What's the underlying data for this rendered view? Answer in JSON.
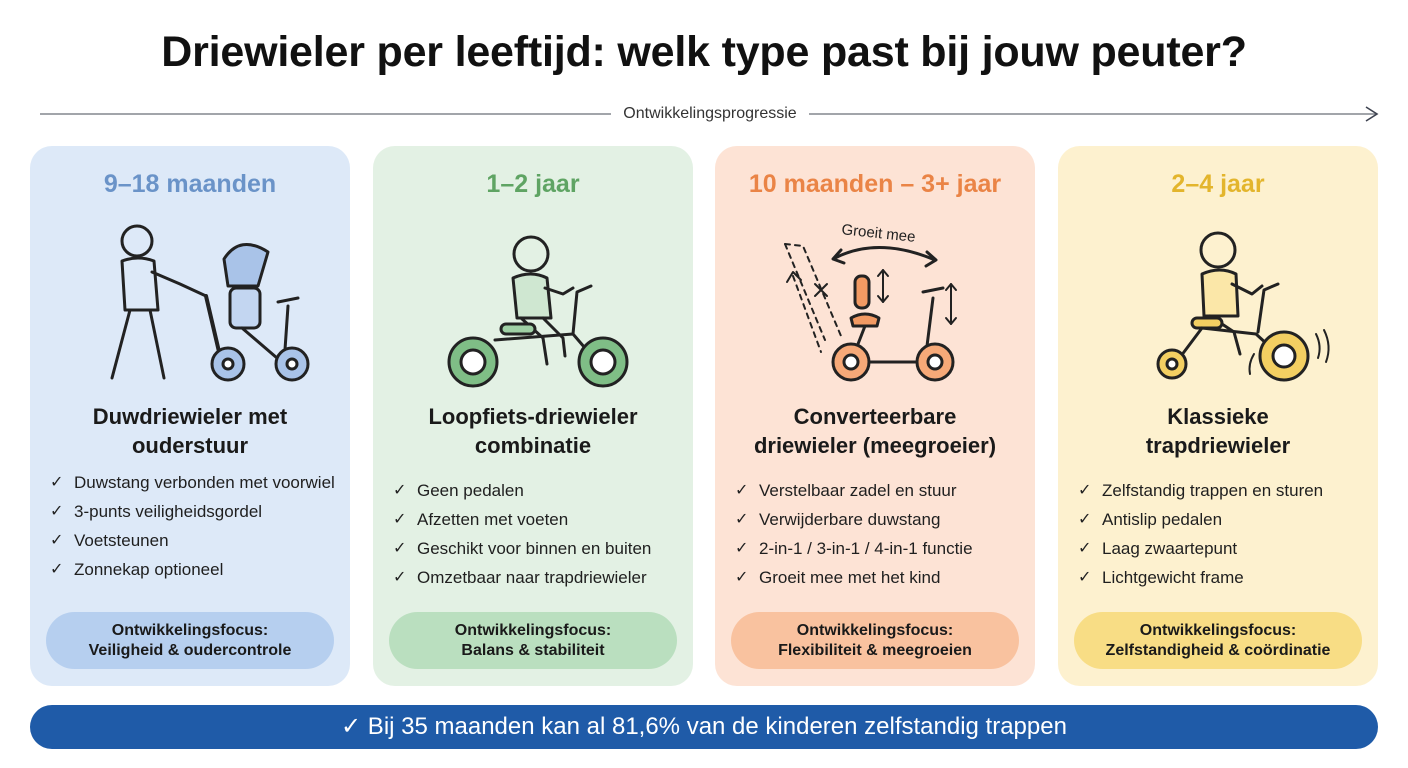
{
  "title": "Driewieler per leeftijd: welk type past bij jouw peuter?",
  "progression_label": "Ontwikkelingsprogressie",
  "cards": [
    {
      "age": "9–18 maanden",
      "title_line1": "Duwdriewieler met",
      "title_line2": "ouderstuur",
      "features": [
        "Duwstang verbonden met voorwiel",
        "3-punts veiligheidsgordel",
        "Voetsteunen",
        "Zonnekap optioneel"
      ],
      "focus_label": "Ontwikkelingsfocus:",
      "focus_value": "Veiligheid & oudercontrole",
      "icon": "push-tricycle-with-parent-icon",
      "accent": "#6a93c8"
    },
    {
      "age": "1–2 jaar",
      "title_line1": "Loopfiets-driewieler",
      "title_line2": "combinatie",
      "features": [
        "Geen pedalen",
        "Afzetten met voeten",
        "Geschikt voor binnen en buiten",
        "Omzetbaar naar trapdriewieler"
      ],
      "focus_label": "Ontwikkelingsfocus:",
      "focus_value": "Balans & stabiliteit",
      "icon": "balance-bike-child-icon",
      "accent": "#5fa463"
    },
    {
      "age": "10 maanden – 3+ jaar",
      "title_line1": "Converteerbare",
      "title_line2": "driewieler (meegroeier)",
      "features": [
        "Verstelbaar zadel en stuur",
        "Verwijderbare duwstang",
        "2-in-1 / 3-in-1 / 4-in-1 functie",
        "Groeit mee met het kind"
      ],
      "focus_label": "Ontwikkelingsfocus:",
      "focus_value": "Flexibiliteit & meegroeien",
      "icon": "convertible-tricycle-icon",
      "illus_label": "Groeit mee",
      "accent": "#ea8446"
    },
    {
      "age": "2–4 jaar",
      "title_line1": "Klassieke",
      "title_line2": "trapdriewieler",
      "features": [
        "Zelfstandig trappen en sturen",
        "Antislip pedalen",
        "Laag zwaartepunt",
        "Lichtgewicht frame"
      ],
      "focus_label": "Ontwikkelingsfocus:",
      "focus_value": "Zelfstandigheid & coördinatie",
      "icon": "pedal-tricycle-child-icon",
      "accent": "#e3b52c"
    }
  ],
  "check_symbol": "✓",
  "banner_text": "✓ Bij 35 maanden kan al 81,6% van de kinderen zelfstandig trappen"
}
